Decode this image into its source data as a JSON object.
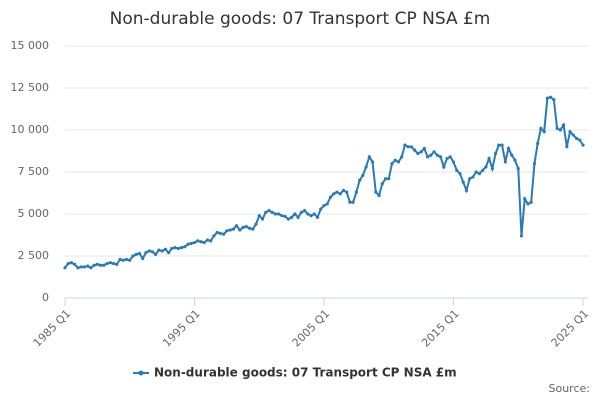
{
  "chart_data": {
    "type": "line",
    "title": "Non-durable goods: 07 Transport CP NSA £m",
    "source": "Source:",
    "categories": [
      "1985 Q1",
      null,
      null,
      null,
      null,
      null,
      null,
      null,
      null,
      null,
      null,
      null,
      null,
      null,
      null,
      null,
      null,
      null,
      null,
      null,
      null,
      null,
      null,
      null,
      null,
      null,
      null,
      null,
      null,
      null,
      null,
      null,
      null,
      null,
      null,
      null,
      null,
      null,
      null,
      null,
      "1995 Q1",
      null,
      null,
      null,
      null,
      null,
      null,
      null,
      null,
      null,
      null,
      null,
      null,
      null,
      null,
      null,
      null,
      null,
      null,
      null,
      null,
      null,
      null,
      null,
      null,
      null,
      null,
      null,
      null,
      null,
      null,
      null,
      null,
      null,
      null,
      null,
      null,
      null,
      null,
      null,
      "2005 Q1",
      null,
      null,
      null,
      null,
      null,
      null,
      null,
      null,
      null,
      null,
      null,
      null,
      null,
      null,
      null,
      null,
      null,
      null,
      null,
      null,
      null,
      null,
      null,
      null,
      null,
      null,
      null,
      null,
      null,
      null,
      null,
      null,
      null,
      null,
      null,
      null,
      null,
      null,
      null,
      "2015 Q1",
      null,
      null,
      null,
      null,
      null,
      null,
      null,
      null,
      null,
      null,
      null,
      null,
      null,
      null,
      null,
      null,
      null,
      null,
      null,
      null,
      null,
      null,
      null,
      null,
      null,
      null,
      null,
      null,
      null,
      null,
      null,
      null,
      null,
      null,
      null,
      null,
      null,
      null,
      null,
      "2025 Q1"
    ],
    "series": [
      {
        "name": "Non-durable goods: 07 Transport CP NSA £m",
        "color": "#2a7ab9",
        "values": [
          1800,
          2050,
          2100,
          2000,
          1800,
          1850,
          1850,
          1900,
          1800,
          1950,
          2000,
          1950,
          1950,
          2050,
          2100,
          2050,
          2000,
          2300,
          2250,
          2300,
          2250,
          2500,
          2600,
          2650,
          2350,
          2700,
          2800,
          2750,
          2600,
          2850,
          2800,
          2900,
          2700,
          2950,
          3000,
          2950,
          3000,
          3050,
          3200,
          3250,
          3300,
          3400,
          3350,
          3300,
          3450,
          3400,
          3700,
          3900,
          3850,
          3800,
          4000,
          4050,
          4100,
          4300,
          4050,
          4200,
          4250,
          4150,
          4100,
          4400,
          4900,
          4700,
          5100,
          5200,
          5100,
          5000,
          5000,
          4900,
          4850,
          4700,
          4800,
          5000,
          4800,
          5100,
          5200,
          5000,
          4900,
          5000,
          4800,
          5300,
          5500,
          5600,
          6000,
          6200,
          6300,
          6200,
          6400,
          6300,
          5700,
          5700,
          6300,
          7000,
          7300,
          7800,
          8400,
          8100,
          6300,
          6100,
          6800,
          7100,
          7100,
          8000,
          8200,
          8100,
          8400,
          9100,
          9000,
          9000,
          8800,
          8600,
          8700,
          8900,
          8400,
          8500,
          8700,
          8500,
          8400,
          7800,
          8300,
          8400,
          8100,
          7600,
          7400,
          6900,
          6400,
          7100,
          7200,
          7500,
          7400,
          7600,
          7800,
          8300,
          7700,
          8600,
          9100,
          9100,
          8100,
          8900,
          8500,
          8200,
          7700,
          3700,
          5900,
          5600,
          5700,
          8000,
          9200,
          10100,
          9900,
          11900,
          11950,
          11800,
          10100,
          10000,
          10300,
          9000,
          9900,
          9700,
          9500,
          9400,
          9100
        ]
      }
    ],
    "ylim": [
      0,
      15000
    ],
    "yticks": [
      0,
      {
        "value": 2500,
        "label": "2 500"
      },
      {
        "value": 5000,
        "label": "5 000"
      },
      {
        "value": 7500,
        "label": "7 500"
      },
      {
        "value": 10000,
        "label": "10 000"
      },
      {
        "value": 12500,
        "label": "12 500"
      },
      {
        "value": 15000,
        "label": "15 000"
      }
    ],
    "grid": true,
    "legend": "bottom"
  }
}
